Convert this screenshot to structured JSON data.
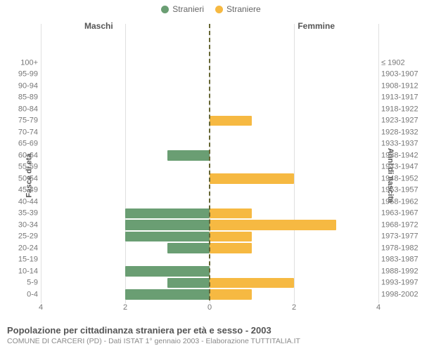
{
  "legend": {
    "stranieri": {
      "label": "Stranieri",
      "color": "#6a9e73"
    },
    "straniere": {
      "label": "Straniere",
      "color": "#f6b942"
    }
  },
  "side_titles": {
    "left": "Maschi",
    "right": "Femmine"
  },
  "axis_titles": {
    "left": "Fasce di età",
    "right": "Anni di nascita"
  },
  "x_axis": {
    "max": 4,
    "ticks": [
      4,
      2,
      0,
      2,
      4
    ]
  },
  "grid_color": "#e0e0e0",
  "center_line_color": "#666633",
  "background_color": "#ffffff",
  "rows": [
    {
      "age": "100+",
      "years": "≤ 1902",
      "m": 0,
      "f": 0
    },
    {
      "age": "95-99",
      "years": "1903-1907",
      "m": 0,
      "f": 0
    },
    {
      "age": "90-94",
      "years": "1908-1912",
      "m": 0,
      "f": 0
    },
    {
      "age": "85-89",
      "years": "1913-1917",
      "m": 0,
      "f": 0
    },
    {
      "age": "80-84",
      "years": "1918-1922",
      "m": 0,
      "f": 0
    },
    {
      "age": "75-79",
      "years": "1923-1927",
      "m": 0,
      "f": 1
    },
    {
      "age": "70-74",
      "years": "1928-1932",
      "m": 0,
      "f": 0
    },
    {
      "age": "65-69",
      "years": "1933-1937",
      "m": 0,
      "f": 0
    },
    {
      "age": "60-64",
      "years": "1938-1942",
      "m": 1,
      "f": 0
    },
    {
      "age": "55-59",
      "years": "1943-1947",
      "m": 0,
      "f": 0
    },
    {
      "age": "50-54",
      "years": "1948-1952",
      "m": 0,
      "f": 2
    },
    {
      "age": "45-49",
      "years": "1953-1957",
      "m": 0,
      "f": 0
    },
    {
      "age": "40-44",
      "years": "1958-1962",
      "m": 0,
      "f": 0
    },
    {
      "age": "35-39",
      "years": "1963-1967",
      "m": 2,
      "f": 1
    },
    {
      "age": "30-34",
      "years": "1968-1972",
      "m": 2,
      "f": 3
    },
    {
      "age": "25-29",
      "years": "1973-1977",
      "m": 2,
      "f": 1
    },
    {
      "age": "20-24",
      "years": "1978-1982",
      "m": 1,
      "f": 1
    },
    {
      "age": "15-19",
      "years": "1983-1987",
      "m": 0,
      "f": 0
    },
    {
      "age": "10-14",
      "years": "1988-1992",
      "m": 2,
      "f": 0
    },
    {
      "age": "5-9",
      "years": "1993-1997",
      "m": 1,
      "f": 2
    },
    {
      "age": "0-4",
      "years": "1998-2002",
      "m": 2,
      "f": 1
    }
  ],
  "footer": {
    "title": "Popolazione per cittadinanza straniera per età e sesso - 2003",
    "subtitle": "COMUNE DI CARCERI (PD) - Dati ISTAT 1° gennaio 2003 - Elaborazione TUTTITALIA.IT"
  }
}
